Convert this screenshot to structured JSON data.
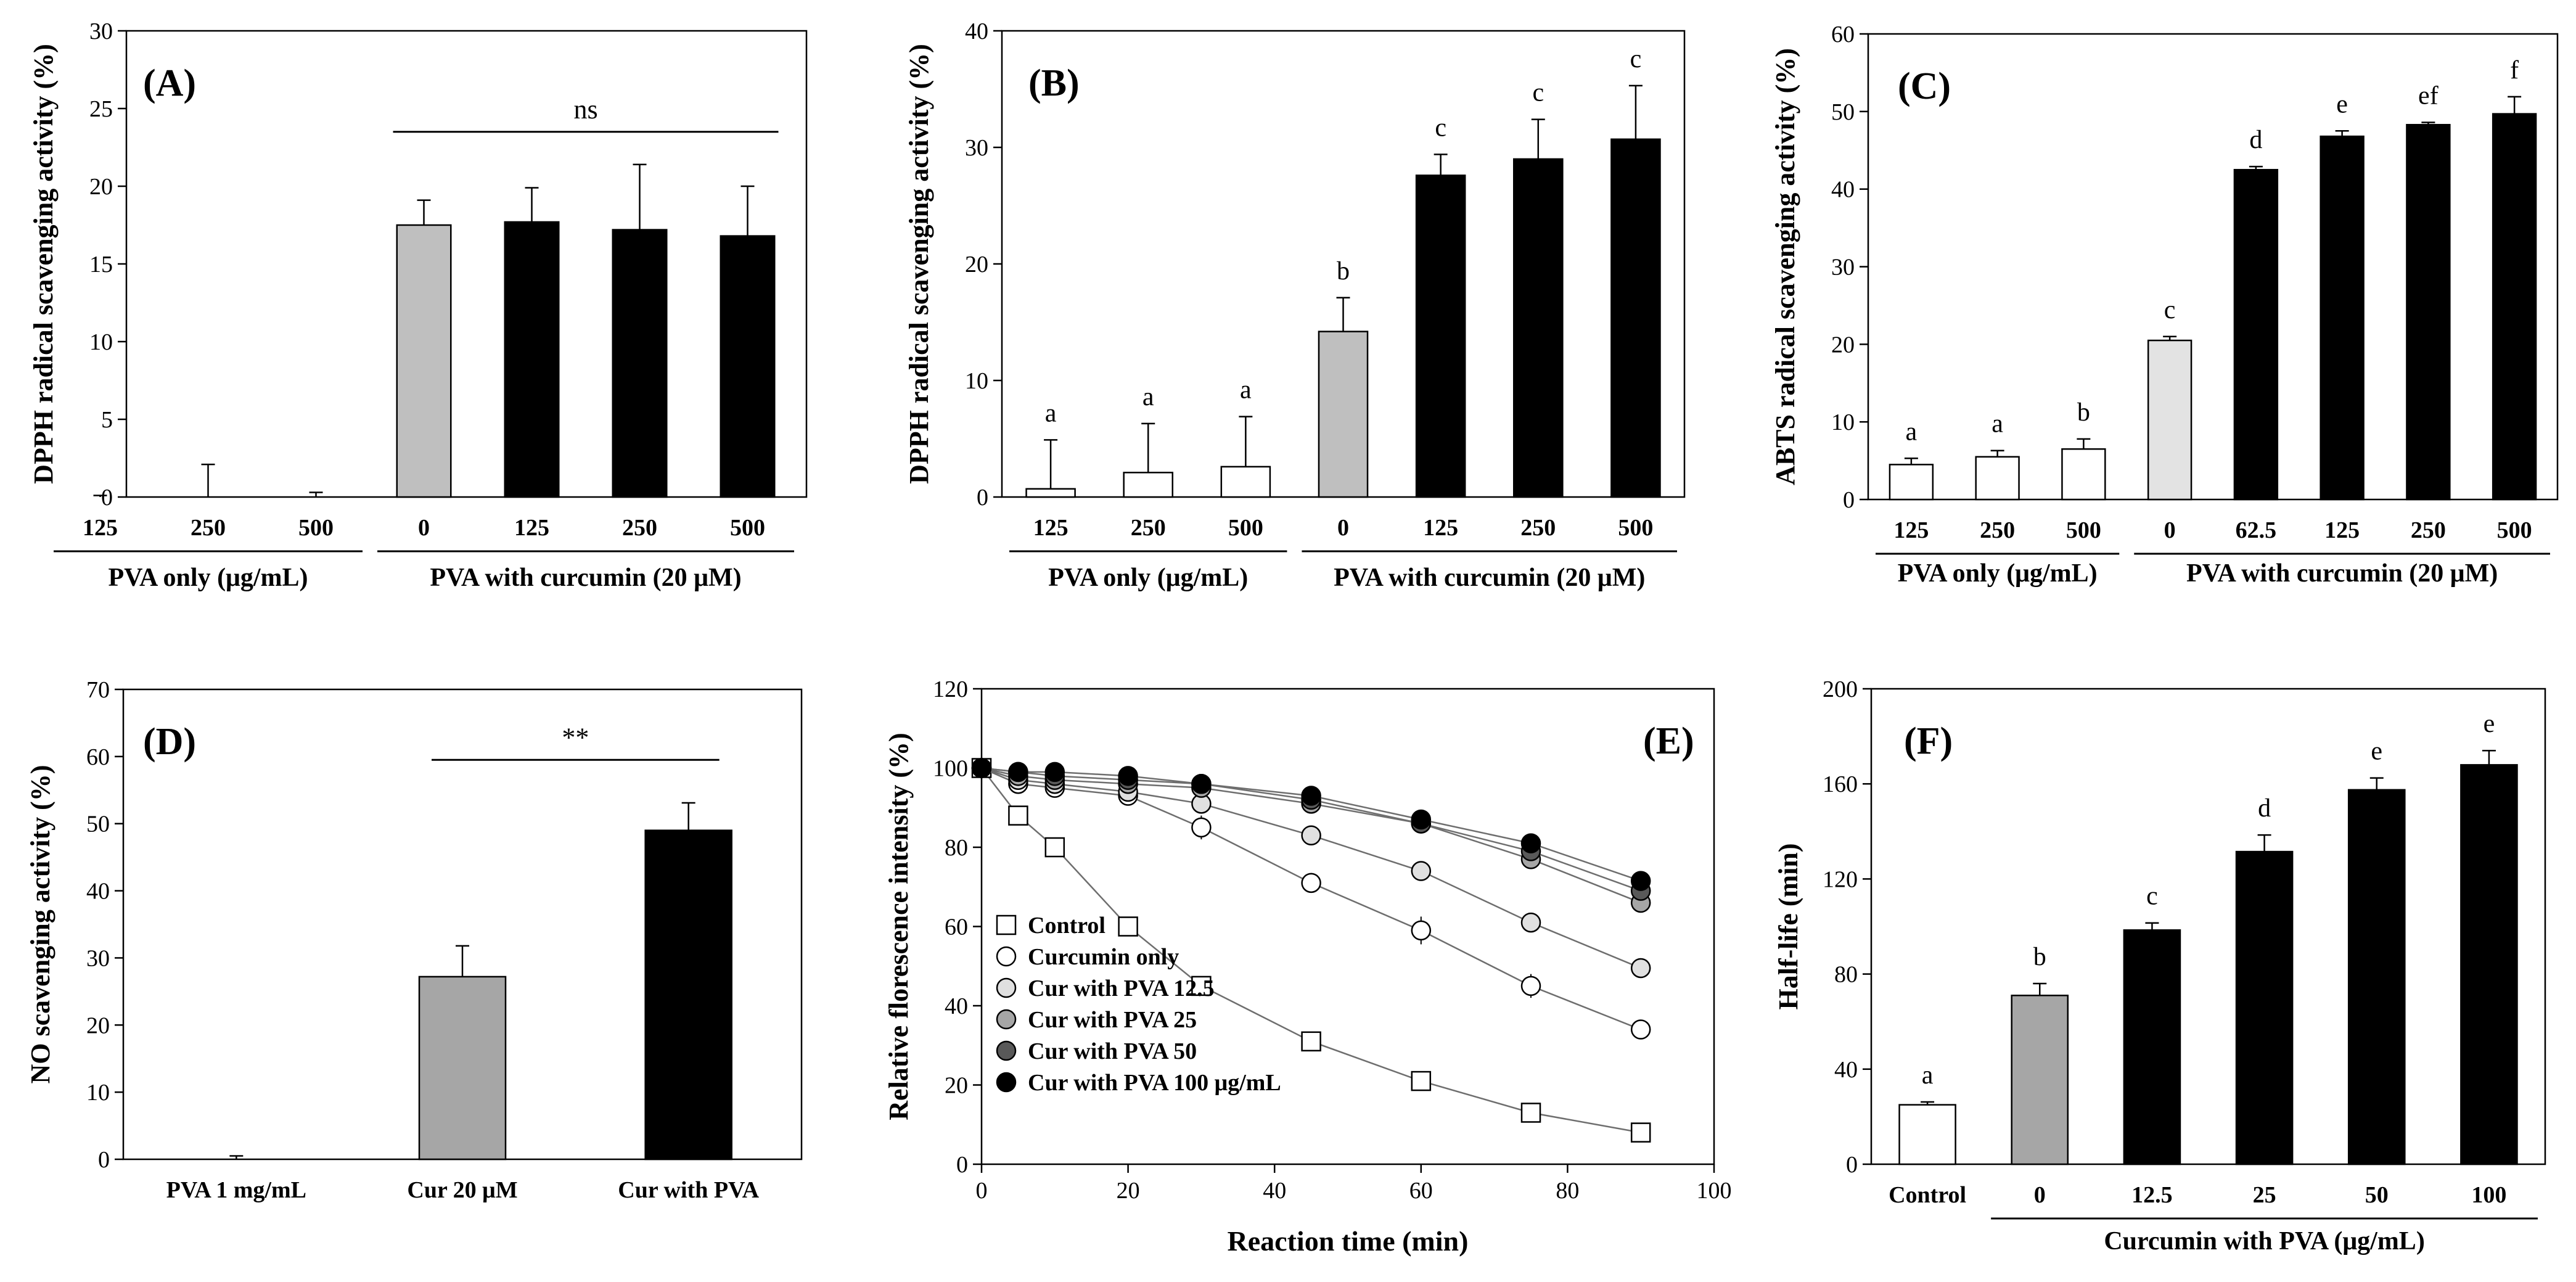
{
  "chart_data": [
    {
      "panel_label": "(A)",
      "type": "bar",
      "ylabel": "DPPH radical scavenging activity (%)",
      "ylim": [
        0,
        30
      ],
      "yticks": [
        0,
        5,
        10,
        15,
        20,
        25,
        30
      ],
      "categories": [
        "125",
        "250",
        "500",
        "0",
        "125",
        "250",
        "500"
      ],
      "values": [
        0,
        0,
        0,
        17.5,
        17.7,
        17.2,
        16.8
      ],
      "errors": [
        0.1,
        2.1,
        0.3,
        1.6,
        2.2,
        4.2,
        3.2
      ],
      "bar_colors": [
        "#ffffff",
        "#ffffff",
        "#ffffff",
        "#bfbfbf",
        "#000000",
        "#000000",
        "#000000"
      ],
      "letters": [],
      "groups": [
        {
          "label": "PVA only (μg/mL)",
          "from": 0,
          "to": 2
        },
        {
          "label": "PVA with curcumin (20 μM)",
          "from": 3,
          "to": 6
        }
      ],
      "annotation": {
        "text": "ns",
        "from": 3,
        "to": 6,
        "y": 23.5
      }
    },
    {
      "panel_label": "(B)",
      "type": "bar",
      "ylabel": "DPPH radical scavenging activity (%)",
      "ylim": [
        0,
        40
      ],
      "yticks": [
        0,
        10,
        20,
        30,
        40
      ],
      "categories": [
        "125",
        "250",
        "500",
        "0",
        "125",
        "250",
        "500"
      ],
      "values": [
        0.7,
        2.1,
        2.6,
        14.2,
        27.6,
        29,
        30.7
      ],
      "errors": [
        4.2,
        4.2,
        4.3,
        2.9,
        1.8,
        3.4,
        4.6
      ],
      "bar_colors": [
        "#ffffff",
        "#ffffff",
        "#ffffff",
        "#bfbfbf",
        "#000000",
        "#000000",
        "#000000"
      ],
      "letters": [
        "a",
        "a",
        "a",
        "b",
        "c",
        "c",
        "c"
      ],
      "groups": [
        {
          "label": "PVA only (μg/mL)",
          "from": 0,
          "to": 2
        },
        {
          "label": "PVA with curcumin (20 μM)",
          "from": 3,
          "to": 6
        }
      ]
    },
    {
      "panel_label": "(C)",
      "type": "bar",
      "ylabel": "ABTS radical scavenging activity (%)",
      "ylim": [
        0,
        60
      ],
      "yticks": [
        0,
        10,
        20,
        30,
        40,
        50,
        60
      ],
      "categories": [
        "125",
        "250",
        "500",
        "0",
        "62.5",
        "125",
        "250",
        "500"
      ],
      "values": [
        4.5,
        5.5,
        6.5,
        20.5,
        42.5,
        46.8,
        48.3,
        49.7
      ],
      "errors": [
        0.8,
        0.8,
        1.3,
        0.5,
        0.4,
        0.7,
        0.3,
        2.2
      ],
      "bar_colors": [
        "#ffffff",
        "#ffffff",
        "#ffffff",
        "#e3e3e3",
        "#000000",
        "#000000",
        "#000000",
        "#000000"
      ],
      "letters": [
        "a",
        "a",
        "b",
        "c",
        "d",
        "e",
        "ef",
        "f"
      ],
      "groups": [
        {
          "label": "PVA only (μg/mL)",
          "from": 0,
          "to": 2
        },
        {
          "label": "PVA with curcumin (20 μM)",
          "from": 3,
          "to": 7
        }
      ]
    },
    {
      "panel_label": "(D)",
      "type": "bar",
      "ylabel": "NO scavenging activity (%)",
      "ylim": [
        0,
        70
      ],
      "yticks": [
        0,
        10,
        20,
        30,
        40,
        50,
        60,
        70
      ],
      "categories": [
        "PVA 1 mg/mL",
        "Cur 20 μM",
        "Cur with PVA"
      ],
      "values": [
        0,
        27.2,
        49
      ],
      "errors": [
        0.5,
        4.6,
        4.1
      ],
      "bar_colors": [
        "#ffffff",
        "#a6a6a6",
        "#000000"
      ],
      "letters": [],
      "groups": [],
      "annotation": {
        "text": "**",
        "from": 1,
        "to": 2,
        "y": 59.5
      }
    },
    {
      "panel_label": "(E)",
      "type": "line",
      "xlabel": "Reaction time (min)",
      "ylabel": "Relative florescence intensity (%)",
      "xlim": [
        0,
        100
      ],
      "xticks": [
        0,
        20,
        40,
        60,
        80,
        100
      ],
      "ylim": [
        0,
        120
      ],
      "yticks": [
        0,
        20,
        40,
        60,
        80,
        100,
        120
      ],
      "x": [
        0,
        5,
        10,
        20,
        30,
        45,
        60,
        75,
        90
      ],
      "series": [
        {
          "name": "Control",
          "marker": "square",
          "fill": "#ffffff",
          "values": [
            100,
            88,
            80,
            60,
            45,
            31,
            21,
            13,
            8
          ],
          "errors": [
            0,
            0,
            0,
            0,
            0,
            0,
            0,
            0,
            0
          ]
        },
        {
          "name": "Curcumin  only",
          "marker": "circle",
          "fill": "#ffffff",
          "values": [
            100,
            96,
            95,
            93,
            85,
            71,
            59,
            45,
            34
          ],
          "errors": [
            0,
            2,
            2,
            2,
            3,
            2.5,
            3.5,
            3,
            1
          ]
        },
        {
          "name": "Cur with PVA 12.5",
          "marker": "circle",
          "fill": "#e0e0e0",
          "values": [
            100,
            97,
            96,
            94,
            91,
            83,
            74,
            61,
            49.5
          ],
          "errors": [
            0,
            1,
            1,
            1,
            1,
            1,
            1,
            1,
            1
          ]
        },
        {
          "name": "Cur with PVA 25",
          "marker": "circle",
          "fill": "#a6a6a6",
          "values": [
            100,
            98,
            97,
            96,
            95,
            91,
            86,
            77,
            66
          ],
          "errors": [
            0,
            1,
            1,
            1,
            1,
            1,
            1,
            1,
            1
          ]
        },
        {
          "name": "Cur with PVA 50",
          "marker": "circle",
          "fill": "#595959",
          "values": [
            100,
            99,
            98,
            97,
            96,
            92,
            86,
            79,
            69
          ],
          "errors": [
            0,
            1,
            1,
            1,
            1,
            1,
            1,
            1,
            1
          ]
        },
        {
          "name": "Cur with PVA 100 μg/mL",
          "marker": "circle",
          "fill": "#000000",
          "values": [
            100,
            99,
            99,
            98,
            96,
            93,
            87,
            81,
            71.5
          ],
          "errors": [
            0,
            1,
            1,
            1,
            1,
            1,
            1,
            1,
            1
          ]
        }
      ]
    },
    {
      "panel_label": "(F)",
      "type": "bar",
      "ylabel": "Half-life  (min)",
      "ylim": [
        0,
        200
      ],
      "yticks": [
        0,
        40,
        80,
        120,
        160,
        200
      ],
      "categories": [
        "Control",
        "0",
        "12.5",
        "25",
        "50",
        "100"
      ],
      "values": [
        25,
        71,
        98.5,
        131.5,
        157.5,
        168
      ],
      "errors": [
        1.2,
        5,
        3,
        7,
        5,
        6
      ],
      "bar_colors": [
        "#ffffff",
        "#a6a6a6",
        "#000000",
        "#000000",
        "#000000",
        "#000000"
      ],
      "letters": [
        "a",
        "b",
        "c",
        "d",
        "e",
        "e"
      ],
      "groups": [
        {
          "label": "Curcumin with PVA (μg/mL)",
          "from": 1,
          "to": 5
        }
      ]
    }
  ]
}
